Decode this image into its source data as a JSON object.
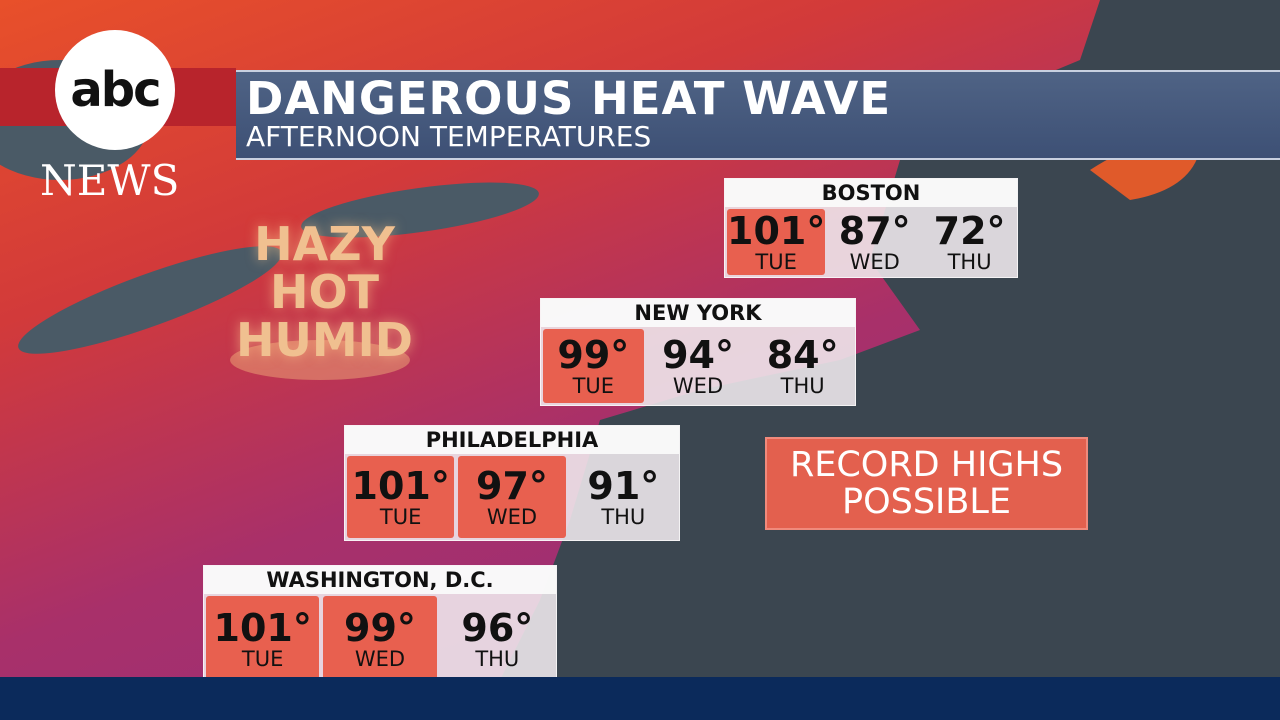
{
  "logo": {
    "mark": "abc",
    "text": "NEWS"
  },
  "header": {
    "title": "DANGEROUS HEAT WAVE",
    "subtitle": "AFTERNOON TEMPERATURES"
  },
  "callout": {
    "lines": [
      "HAZY",
      "HOT",
      "HUMID"
    ]
  },
  "cities": [
    {
      "name": "BOSTON",
      "days": [
        {
          "temp": "101°",
          "day": "TUE",
          "highlight": true
        },
        {
          "temp": "87°",
          "day": "WED",
          "highlight": false
        },
        {
          "temp": "72°",
          "day": "THU",
          "highlight": false
        }
      ]
    },
    {
      "name": "NEW YORK",
      "days": [
        {
          "temp": "99°",
          "day": "TUE",
          "highlight": true
        },
        {
          "temp": "94°",
          "day": "WED",
          "highlight": false
        },
        {
          "temp": "84°",
          "day": "THU",
          "highlight": false
        }
      ]
    },
    {
      "name": "PHILADELPHIA",
      "days": [
        {
          "temp": "101°",
          "day": "TUE",
          "highlight": true
        },
        {
          "temp": "97°",
          "day": "WED",
          "highlight": true
        },
        {
          "temp": "91°",
          "day": "THU",
          "highlight": false
        }
      ]
    },
    {
      "name": "WASHINGTON, D.C.",
      "days": [
        {
          "temp": "101°",
          "day": "TUE",
          "highlight": true
        },
        {
          "temp": "99°",
          "day": "WED",
          "highlight": true
        },
        {
          "temp": "96°",
          "day": "THU",
          "highlight": false
        }
      ]
    }
  ],
  "alert": {
    "lines": [
      "RECORD HIGHS",
      "POSSIBLE"
    ]
  }
}
